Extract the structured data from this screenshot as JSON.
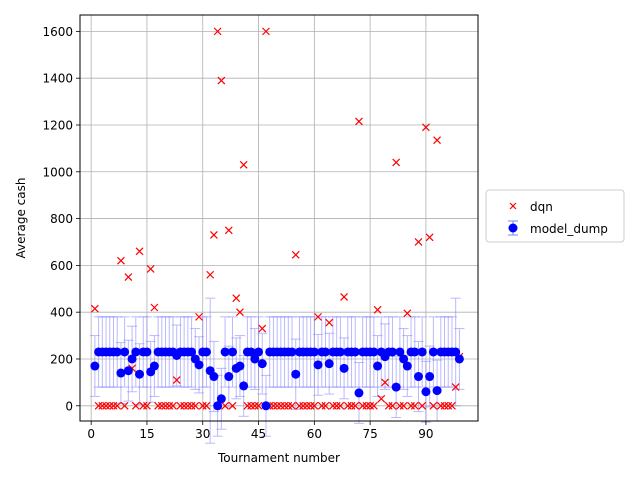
{
  "chart_data": {
    "type": "scatter",
    "xlabel": "Tournament number",
    "ylabel": "Average cash",
    "xlim": [
      -3,
      104
    ],
    "ylim": [
      -65,
      1670
    ],
    "x_ticks": [
      0,
      15,
      30,
      45,
      60,
      75,
      90
    ],
    "y_ticks": [
      0,
      200,
      400,
      600,
      800,
      1000,
      1200,
      1400,
      1600
    ],
    "grid": true,
    "legend_position": "outside-right",
    "series": [
      {
        "name": "dqn",
        "marker": "x",
        "color": "#ff0000",
        "points": [
          [
            1,
            415
          ],
          [
            2,
            0
          ],
          [
            3,
            0
          ],
          [
            4,
            0
          ],
          [
            5,
            0
          ],
          [
            6,
            0
          ],
          [
            7,
            0
          ],
          [
            8,
            620
          ],
          [
            9,
            0
          ],
          [
            10,
            550
          ],
          [
            11,
            160
          ],
          [
            12,
            0
          ],
          [
            13,
            660
          ],
          [
            14,
            0
          ],
          [
            15,
            0
          ],
          [
            16,
            585
          ],
          [
            17,
            420
          ],
          [
            18,
            0
          ],
          [
            19,
            0
          ],
          [
            20,
            0
          ],
          [
            21,
            0
          ],
          [
            22,
            0
          ],
          [
            23,
            110
          ],
          [
            24,
            0
          ],
          [
            25,
            0
          ],
          [
            26,
            0
          ],
          [
            27,
            0
          ],
          [
            28,
            0
          ],
          [
            29,
            380
          ],
          [
            30,
            0
          ],
          [
            31,
            0
          ],
          [
            32,
            560
          ],
          [
            33,
            730
          ],
          [
            34,
            1600
          ],
          [
            35,
            1390
          ],
          [
            36,
            0
          ],
          [
            37,
            750
          ],
          [
            38,
            0
          ],
          [
            39,
            460
          ],
          [
            40,
            400
          ],
          [
            41,
            1030
          ],
          [
            42,
            0
          ],
          [
            43,
            0
          ],
          [
            44,
            0
          ],
          [
            45,
            0
          ],
          [
            46,
            330
          ],
          [
            47,
            1600
          ],
          [
            48,
            0
          ],
          [
            49,
            0
          ],
          [
            50,
            0
          ],
          [
            51,
            0
          ],
          [
            52,
            0
          ],
          [
            53,
            0
          ],
          [
            54,
            0
          ],
          [
            55,
            645
          ],
          [
            56,
            0
          ],
          [
            57,
            0
          ],
          [
            58,
            0
          ],
          [
            59,
            0
          ],
          [
            60,
            0
          ],
          [
            61,
            380
          ],
          [
            62,
            0
          ],
          [
            63,
            0
          ],
          [
            64,
            355
          ],
          [
            65,
            0
          ],
          [
            66,
            0
          ],
          [
            67,
            0
          ],
          [
            68,
            465
          ],
          [
            69,
            0
          ],
          [
            70,
            0
          ],
          [
            71,
            0
          ],
          [
            72,
            1215
          ],
          [
            73,
            0
          ],
          [
            74,
            0
          ],
          [
            75,
            0
          ],
          [
            76,
            0
          ],
          [
            77,
            410
          ],
          [
            78,
            30
          ],
          [
            79,
            100
          ],
          [
            80,
            0
          ],
          [
            81,
            0
          ],
          [
            82,
            1040
          ],
          [
            83,
            0
          ],
          [
            84,
            0
          ],
          [
            85,
            395
          ],
          [
            86,
            0
          ],
          [
            87,
            0
          ],
          [
            88,
            700
          ],
          [
            89,
            0
          ],
          [
            90,
            1190
          ],
          [
            91,
            720
          ],
          [
            92,
            0
          ],
          [
            93,
            1135
          ],
          [
            94,
            0
          ],
          [
            95,
            0
          ],
          [
            96,
            0
          ],
          [
            97,
            0
          ],
          [
            98,
            80
          ],
          [
            99,
            210
          ]
        ]
      },
      {
        "name": "model_dump",
        "marker": "o",
        "color": "#0000ff",
        "error_color": "#8080ff",
        "points": [
          [
            1,
            170,
            130
          ],
          [
            2,
            230,
            150
          ],
          [
            3,
            230,
            150
          ],
          [
            4,
            230,
            150
          ],
          [
            5,
            230,
            150
          ],
          [
            6,
            230,
            150
          ],
          [
            7,
            230,
            150
          ],
          [
            8,
            140,
            130
          ],
          [
            9,
            230,
            150
          ],
          [
            10,
            150,
            130
          ],
          [
            11,
            200,
            140
          ],
          [
            12,
            230,
            150
          ],
          [
            13,
            135,
            130
          ],
          [
            14,
            230,
            150
          ],
          [
            15,
            230,
            150
          ],
          [
            16,
            145,
            130
          ],
          [
            17,
            170,
            130
          ],
          [
            18,
            230,
            150
          ],
          [
            19,
            230,
            150
          ],
          [
            20,
            230,
            150
          ],
          [
            21,
            230,
            150
          ],
          [
            22,
            230,
            150
          ],
          [
            23,
            215,
            130
          ],
          [
            24,
            230,
            150
          ],
          [
            25,
            230,
            150
          ],
          [
            26,
            230,
            150
          ],
          [
            27,
            230,
            150
          ],
          [
            28,
            200,
            130
          ],
          [
            29,
            175,
            120
          ],
          [
            30,
            230,
            150
          ],
          [
            31,
            230,
            150
          ],
          [
            32,
            150,
            310
          ],
          [
            33,
            125,
            150
          ],
          [
            34,
            0,
            130
          ],
          [
            35,
            30,
            130
          ],
          [
            36,
            230,
            150
          ],
          [
            37,
            125,
            130
          ],
          [
            38,
            230,
            150
          ],
          [
            39,
            160,
            130
          ],
          [
            40,
            170,
            130
          ],
          [
            41,
            85,
            130
          ],
          [
            42,
            230,
            150
          ],
          [
            43,
            230,
            150
          ],
          [
            44,
            200,
            130
          ],
          [
            45,
            230,
            150
          ],
          [
            46,
            180,
            130
          ],
          [
            47,
            0,
            130
          ],
          [
            48,
            230,
            150
          ],
          [
            49,
            230,
            150
          ],
          [
            50,
            230,
            150
          ],
          [
            51,
            230,
            150
          ],
          [
            52,
            230,
            150
          ],
          [
            53,
            230,
            150
          ],
          [
            54,
            230,
            150
          ],
          [
            55,
            135,
            150
          ],
          [
            56,
            230,
            150
          ],
          [
            57,
            230,
            150
          ],
          [
            58,
            230,
            150
          ],
          [
            59,
            230,
            150
          ],
          [
            60,
            230,
            150
          ],
          [
            61,
            175,
            130
          ],
          [
            62,
            230,
            150
          ],
          [
            63,
            230,
            150
          ],
          [
            64,
            180,
            130
          ],
          [
            65,
            230,
            150
          ],
          [
            66,
            230,
            150
          ],
          [
            67,
            230,
            150
          ],
          [
            68,
            160,
            130
          ],
          [
            69,
            230,
            150
          ],
          [
            70,
            230,
            150
          ],
          [
            71,
            230,
            150
          ],
          [
            72,
            55,
            130
          ],
          [
            73,
            230,
            150
          ],
          [
            74,
            230,
            150
          ],
          [
            75,
            230,
            150
          ],
          [
            76,
            230,
            150
          ],
          [
            77,
            170,
            130
          ],
          [
            78,
            230,
            150
          ],
          [
            79,
            210,
            140
          ],
          [
            80,
            230,
            150
          ],
          [
            81,
            230,
            150
          ],
          [
            82,
            80,
            130
          ],
          [
            83,
            230,
            150
          ],
          [
            84,
            200,
            130
          ],
          [
            85,
            170,
            130
          ],
          [
            86,
            230,
            150
          ],
          [
            87,
            230,
            150
          ],
          [
            88,
            125,
            150
          ],
          [
            89,
            230,
            150
          ],
          [
            90,
            60,
            130
          ],
          [
            91,
            125,
            130
          ],
          [
            92,
            230,
            150
          ],
          [
            93,
            65,
            130
          ],
          [
            94,
            230,
            150
          ],
          [
            95,
            230,
            150
          ],
          [
            96,
            230,
            150
          ],
          [
            97,
            230,
            150
          ],
          [
            98,
            230,
            230
          ],
          [
            99,
            200,
            130
          ]
        ]
      }
    ]
  }
}
